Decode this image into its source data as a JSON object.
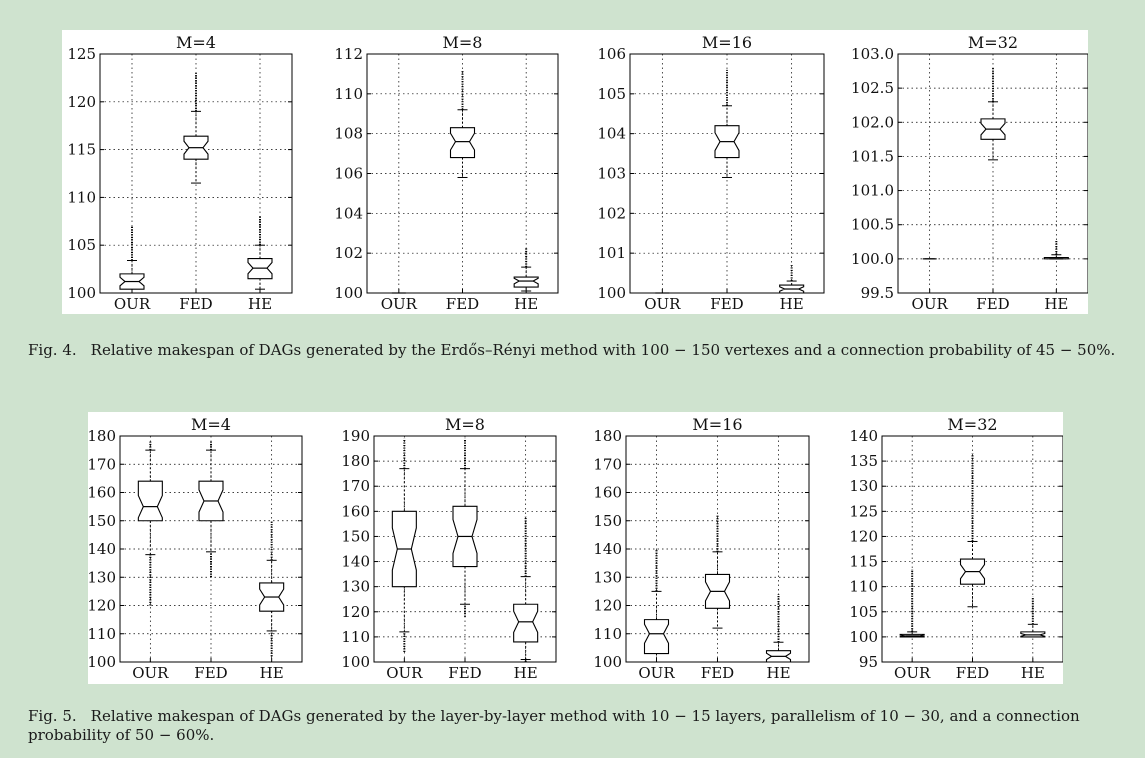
{
  "figures": [
    {
      "caption_number": "Fig. 4.",
      "caption_text": "Relative makespan of DAGs generated by the Erdős–Rényi method with 100 − 150 vertexes and a connection probability of 45 − 50%."
    },
    {
      "caption_number": "Fig. 5.",
      "caption_text": "Relative makespan of DAGs generated by the layer-by-layer method with 10 − 15 layers, parallelism of 10 − 30, and a connection probability of 50 − 60%."
    }
  ],
  "chart_data": [
    {
      "type": "box",
      "figure": "Fig. 4.",
      "title": "M=4",
      "categories": [
        "OUR",
        "FED",
        "HE"
      ],
      "ylim": [
        100,
        125
      ],
      "yticks": [
        "100",
        "105",
        "110",
        "115",
        "120",
        "125"
      ],
      "grid": true,
      "boxes": [
        {
          "category": "OUR",
          "q1": 100.4,
          "median": 101.2,
          "q3": 102.0,
          "whisker_low": 100.0,
          "whisker_high": 103.4,
          "outlier_max": 107.0
        },
        {
          "category": "FED",
          "q1": 114.0,
          "median": 115.2,
          "q3": 116.4,
          "whisker_low": 111.5,
          "whisker_high": 119.0,
          "outlier_max": 123.0
        },
        {
          "category": "HE",
          "q1": 101.5,
          "median": 102.6,
          "q3": 103.6,
          "whisker_low": 100.4,
          "whisker_high": 105.0,
          "outlier_max": 108.0
        }
      ]
    },
    {
      "type": "box",
      "figure": "Fig. 4.",
      "title": "M=8",
      "categories": [
        "OUR",
        "FED",
        "HE"
      ],
      "ylim": [
        100,
        112
      ],
      "yticks": [
        "100",
        "102",
        "104",
        "106",
        "108",
        "110",
        "112"
      ],
      "grid": true,
      "boxes": [
        {
          "category": "OUR",
          "q1": 100,
          "median": 100,
          "q3": 100,
          "whisker_low": 100,
          "whisker_high": 100,
          "outlier_max": 100
        },
        {
          "category": "FED",
          "q1": 106.8,
          "median": 107.6,
          "q3": 108.3,
          "whisker_low": 105.8,
          "whisker_high": 109.2,
          "outlier_max": 111.2
        },
        {
          "category": "HE",
          "q1": 100.3,
          "median": 100.6,
          "q3": 100.8,
          "whisker_low": 100.1,
          "whisker_high": 101.3,
          "outlier_max": 102.3
        }
      ]
    },
    {
      "type": "box",
      "figure": "Fig. 4.",
      "title": "M=16",
      "categories": [
        "OUR",
        "FED",
        "HE"
      ],
      "ylim": [
        100,
        106
      ],
      "yticks": [
        "100",
        "101",
        "102",
        "103",
        "104",
        "105",
        "106"
      ],
      "grid": true,
      "boxes": [
        {
          "category": "OUR",
          "q1": 100,
          "median": 100,
          "q3": 100,
          "whisker_low": 100,
          "whisker_high": 100,
          "outlier_max": 100
        },
        {
          "category": "FED",
          "q1": 103.4,
          "median": 103.8,
          "q3": 104.2,
          "whisker_low": 102.9,
          "whisker_high": 104.7,
          "outlier_max": 105.6
        },
        {
          "category": "HE",
          "q1": 100.0,
          "median": 100.1,
          "q3": 100.2,
          "whisker_low": 100.0,
          "whisker_high": 100.3,
          "outlier_max": 100.7
        }
      ]
    },
    {
      "type": "box",
      "figure": "Fig. 4.",
      "title": "M=32",
      "categories": [
        "OUR",
        "FED",
        "HE"
      ],
      "ylim": [
        99.5,
        103.0
      ],
      "yticks": [
        "99.5",
        "100.0",
        "100.5",
        "101.0",
        "101.5",
        "102.0",
        "102.5",
        "103.0"
      ],
      "grid": true,
      "boxes": [
        {
          "category": "OUR",
          "q1": 100.0,
          "median": 100.0,
          "q3": 100.0,
          "whisker_low": 100.0,
          "whisker_high": 100.0,
          "outlier_max": 100.0
        },
        {
          "category": "FED",
          "q1": 101.75,
          "median": 101.9,
          "q3": 102.05,
          "whisker_low": 101.45,
          "whisker_high": 102.3,
          "outlier_max": 102.8
        },
        {
          "category": "HE",
          "q1": 100.0,
          "median": 100.0,
          "q3": 100.02,
          "whisker_low": 100.0,
          "whisker_high": 100.06,
          "outlier_max": 100.28
        }
      ]
    },
    {
      "type": "box",
      "figure": "Fig. 5.",
      "title": "M=4",
      "categories": [
        "OUR",
        "FED",
        "HE"
      ],
      "ylim": [
        100,
        180
      ],
      "yticks": [
        "100",
        "110",
        "120",
        "130",
        "140",
        "150",
        "160",
        "170",
        "180"
      ],
      "grid": true,
      "boxes": [
        {
          "category": "OUR",
          "q1": 150,
          "median": 155,
          "q3": 164,
          "whisker_low": 138,
          "whisker_high": 175,
          "outlier_min": 120,
          "outlier_max": 178
        },
        {
          "category": "FED",
          "q1": 150,
          "median": 157,
          "q3": 164,
          "whisker_low": 139,
          "whisker_high": 175,
          "outlier_min": 130,
          "outlier_max": 178
        },
        {
          "category": "HE",
          "q1": 118,
          "median": 123,
          "q3": 128,
          "whisker_low": 111,
          "whisker_high": 136,
          "outlier_min": 102,
          "outlier_max": 150
        }
      ]
    },
    {
      "type": "box",
      "figure": "Fig. 5.",
      "title": "M=8",
      "categories": [
        "OUR",
        "FED",
        "HE"
      ],
      "ylim": [
        100,
        190
      ],
      "yticks": [
        "100",
        "110",
        "120",
        "130",
        "140",
        "150",
        "160",
        "170",
        "180",
        "190"
      ],
      "grid": true,
      "boxes": [
        {
          "category": "OUR",
          "q1": 130,
          "median": 145,
          "q3": 160,
          "whisker_low": 112,
          "whisker_high": 177,
          "outlier_min": 104,
          "outlier_max": 189
        },
        {
          "category": "FED",
          "q1": 138,
          "median": 150,
          "q3": 162,
          "whisker_low": 123,
          "whisker_high": 177,
          "outlier_min": 118,
          "outlier_max": 189
        },
        {
          "category": "HE",
          "q1": 108,
          "median": 116,
          "q3": 123,
          "whisker_low": 101,
          "whisker_high": 134,
          "outlier_min": 100,
          "outlier_max": 158
        }
      ]
    },
    {
      "type": "box",
      "figure": "Fig. 5.",
      "title": "M=16",
      "categories": [
        "OUR",
        "FED",
        "HE"
      ],
      "ylim": [
        100,
        180
      ],
      "yticks": [
        "100",
        "110",
        "120",
        "130",
        "140",
        "150",
        "160",
        "170",
        "180"
      ],
      "grid": true,
      "boxes": [
        {
          "category": "OUR",
          "q1": 103,
          "median": 110,
          "q3": 115,
          "whisker_low": 100,
          "whisker_high": 125,
          "outlier_max": 140
        },
        {
          "category": "FED",
          "q1": 119,
          "median": 125,
          "q3": 131,
          "whisker_low": 112,
          "whisker_high": 139,
          "outlier_max": 152
        },
        {
          "category": "HE",
          "q1": 100,
          "median": 102,
          "q3": 104,
          "whisker_low": 100,
          "whisker_high": 107,
          "outlier_max": 124
        }
      ]
    },
    {
      "type": "box",
      "figure": "Fig. 5.",
      "title": "M=32",
      "categories": [
        "OUR",
        "FED",
        "HE"
      ],
      "ylim": [
        95,
        140
      ],
      "yticks": [
        "95",
        "100",
        "105",
        "110",
        "115",
        "120",
        "125",
        "130",
        "135",
        "140"
      ],
      "grid": true,
      "boxes": [
        {
          "category": "OUR",
          "q1": 100.0,
          "median": 100.2,
          "q3": 100.5,
          "whisker_low": 100.0,
          "whisker_high": 101.0,
          "outlier_max": 113.5
        },
        {
          "category": "FED",
          "q1": 110.5,
          "median": 113.0,
          "q3": 115.5,
          "whisker_low": 106.0,
          "whisker_high": 119.0,
          "outlier_max": 136.5
        },
        {
          "category": "HE",
          "q1": 100.0,
          "median": 100.4,
          "q3": 101.0,
          "whisker_low": 100.0,
          "whisker_high": 102.5,
          "outlier_max": 108.0
        }
      ]
    }
  ]
}
